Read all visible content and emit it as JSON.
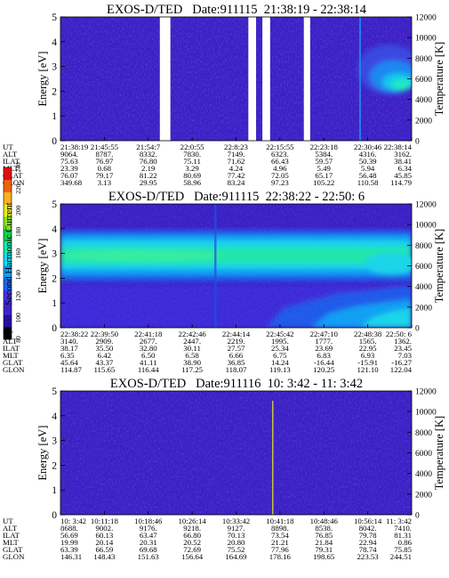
{
  "colors": {
    "background": "#ffffff",
    "scale": [
      "#000000",
      "#2a0aa0",
      "#3a24c8",
      "#4030e0",
      "#1c62ec",
      "#10a0f4",
      "#18d8e8",
      "#18e8a8",
      "#10d050",
      "#88e020",
      "#e8e820",
      "#f8b020",
      "#f06010",
      "#e01010"
    ]
  },
  "colorbar": {
    "label": "Second Harmonic Current",
    "ticks": [
      "80",
      "100",
      "120",
      "140",
      "160",
      "180",
      "200",
      "220",
      "240"
    ]
  },
  "chart_data": [
    {
      "type": "heatmap",
      "title": "EXOS-D/TED   Date:911115  21:38:19 - 22:38:14",
      "ylabel": "Energy [eV]",
      "ylim": [
        0,
        5
      ],
      "yticks": [
        "0",
        "1",
        "2",
        "3",
        "4",
        "5"
      ],
      "y2label": "Temperature [K]",
      "y2lim": [
        0,
        12000
      ],
      "y2ticks": [
        "0",
        "2000",
        "4000",
        "6000",
        "8000",
        "10000",
        "12000"
      ],
      "gaps": [
        [
          0.283,
          0.313
        ],
        [
          0.535,
          0.557
        ],
        [
          0.575,
          0.597
        ],
        [
          0.693,
          0.711
        ]
      ],
      "features": "mostly background (~100); hot blob 3.2-8 K-range near right end",
      "rows": [
        {
          "label": "UT",
          "values": [
            "21:38:19",
            "21:45:55",
            "21:54:7",
            "22:0:55",
            "22:8:23",
            "22:15:55",
            "22:23:18",
            "22:30:46",
            "22:38:14"
          ]
        },
        {
          "label": "ALT",
          "values": [
            "9064.",
            "8787.",
            "8332.",
            "7830.",
            "7149.",
            "6323.",
            "5384.",
            "4316.",
            "3162."
          ]
        },
        {
          "label": "ILAT",
          "values": [
            "75.63",
            "76.97",
            "76.80",
            "75.11",
            "71.62",
            "66.43",
            "59.57",
            "50.39",
            "38.41"
          ]
        },
        {
          "label": "MLT",
          "values": [
            "23.39",
            "0.68",
            "2.19",
            "3.29",
            "4.24",
            "4.96",
            "5.49",
            "5.94",
            "6.34"
          ]
        },
        {
          "label": "GLAT",
          "values": [
            "76.07",
            "79.17",
            "81.22",
            "80.69",
            "77.42",
            "72.05",
            "65.17",
            "56.48",
            "45.85"
          ]
        },
        {
          "label": "GLON",
          "values": [
            "349.68",
            "3.13",
            "29.95",
            "58.96",
            "83.24",
            "97.23",
            "105.22",
            "110.58",
            "114.79"
          ]
        }
      ]
    },
    {
      "type": "heatmap",
      "title": "EXOS-D/TED   Date:911115  22:38:22 - 22:50: 6",
      "ylabel": "Energy [eV]",
      "ylim": [
        0,
        5
      ],
      "yticks": [
        "0",
        "1",
        "2",
        "3",
        "4",
        "5"
      ],
      "y2label": "Temperature [K]",
      "y2lim": [
        0,
        12000
      ],
      "y2ticks": [
        "0",
        "2000",
        "4000",
        "6000",
        "8000",
        "10000",
        "12000"
      ],
      "features": "bright band centered ~2.2 eV across all times; cyan region rising at right end",
      "rows": [
        {
          "label": "UT",
          "values": [
            "22:38:22",
            "22:39:50",
            "22:41:18",
            "22:42:46",
            "22:44:14",
            "22:45:42",
            "22:47:10",
            "22:48:38",
            "22:50: 6"
          ]
        },
        {
          "label": "ALT",
          "values": [
            "3140.",
            "2909.",
            "2677.",
            "2447.",
            "2219.",
            "1995.",
            "1777.",
            "1565.",
            "1362."
          ]
        },
        {
          "label": "ILAT",
          "values": [
            "38.17",
            "35.50",
            "32.80",
            "30.11",
            "27.57",
            "25.34",
            "23.69",
            "22.95",
            "23.45"
          ]
        },
        {
          "label": "MLT",
          "values": [
            "6.35",
            "6.42",
            "6.50",
            "6.58",
            "6.66",
            "6.75",
            "6.83",
            "6.93",
            "7.03"
          ]
        },
        {
          "label": "GLAT",
          "values": [
            "45.64",
            "43.37",
            "41.11",
            "38.90",
            "36.85",
            "14.24",
            "-16.44",
            "-15.91",
            "-16.27"
          ]
        },
        {
          "label": "GLON",
          "values": [
            "114.87",
            "115.65",
            "116.44",
            "117.25",
            "118.07",
            "119.13",
            "120.25",
            "121.10",
            "122.04"
          ]
        }
      ]
    },
    {
      "type": "heatmap",
      "title": "EXOS-D/TED   Date:911116  10: 3:42 - 11: 3:42",
      "ylabel": "Energy [eV]",
      "ylim": [
        0,
        5
      ],
      "yticks": [
        "0",
        "1",
        "2",
        "3",
        "4",
        "5"
      ],
      "y2label": "Temperature [K]",
      "y2lim": [
        0,
        12000
      ],
      "y2ticks": [
        "0",
        "2000",
        "4000",
        "6000",
        "8000",
        "10000",
        "12000"
      ],
      "features": "uniform background; thin spike near 10:41",
      "rows": [
        {
          "label": "UT",
          "values": [
            "10: 3:42",
            "10:11:18",
            "10:18:46",
            "10:26:14",
            "10:33:42",
            "10:41:18",
            "10:48:46",
            "10:56:14",
            "11: 3:42"
          ]
        },
        {
          "label": "ALT",
          "values": [
            "8688.",
            "9002.",
            "9176.",
            "9218.",
            "9127.",
            "8898.",
            "8538.",
            "8042.",
            "7410."
          ]
        },
        {
          "label": "ILAT",
          "values": [
            "56.69",
            "60.13",
            "63.47",
            "66.80",
            "70.13",
            "73.54",
            "76.85",
            "79.78",
            "81.31"
          ]
        },
        {
          "label": "MLT",
          "values": [
            "19.99",
            "20.14",
            "20.31",
            "20.52",
            "20.80",
            "21.21",
            "21.84",
            "22.94",
            "0.86"
          ]
        },
        {
          "label": "GLAT",
          "values": [
            "63.39",
            "66.59",
            "69.68",
            "72.69",
            "75.52",
            "77.96",
            "79.31",
            "78.74",
            "75.85"
          ]
        },
        {
          "label": "GLON",
          "values": [
            "146.31",
            "148.43",
            "151.63",
            "156.64",
            "164.69",
            "178.16",
            "198.65",
            "223.53",
            "244.51"
          ]
        }
      ]
    }
  ]
}
